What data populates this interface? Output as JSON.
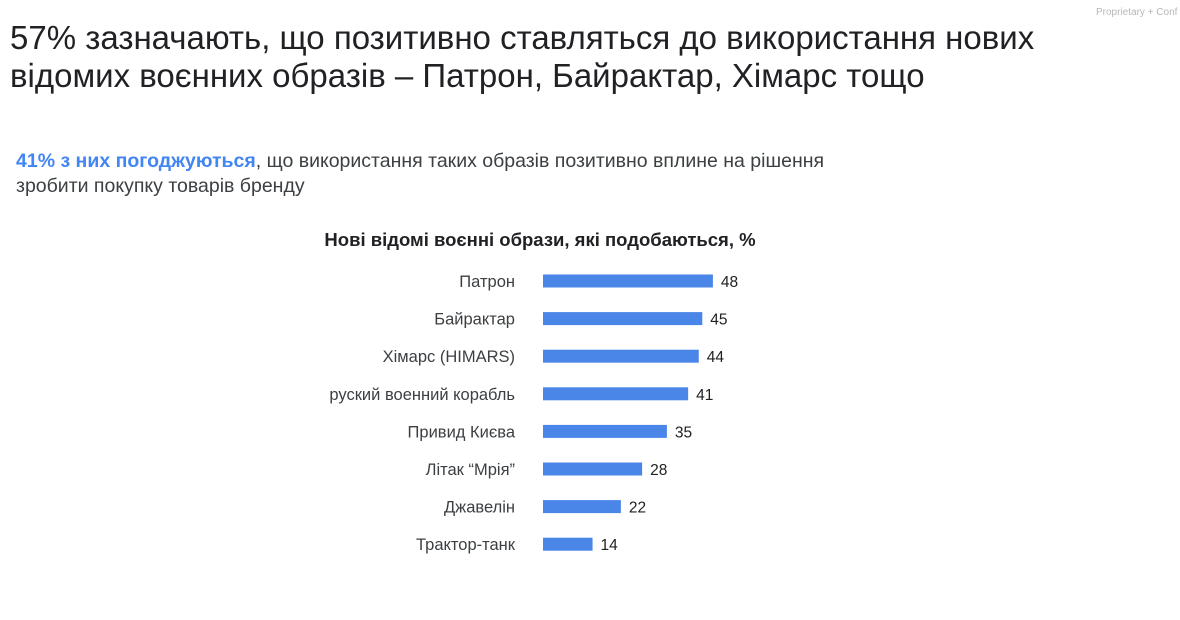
{
  "watermark": "Proprietary + Conf",
  "title": "57% зазначають, що позитивно ставляться до використання нових відомих воєнних образів – Патрон, Байрактар, Хімарс тощо",
  "subtitle": {
    "highlight": "41% з них погоджуються",
    "rest": ", що використання таких образів позитивно вплине на рішення зробити покупку товарів бренду"
  },
  "chart_data": {
    "type": "bar",
    "orientation": "horizontal",
    "title": "Нові відомі воєнні образи, які подобаються, %",
    "categories": [
      "Патрон",
      "Байрактар",
      "Хімарс (HIMARS)",
      "руский военний корабль",
      "Привид Києва",
      "Літак “Мрія”",
      "Джавелін",
      "Трактор-танк"
    ],
    "values": [
      48,
      45,
      44,
      41,
      35,
      28,
      22,
      14
    ],
    "data_labels": true,
    "xlabel": "",
    "ylabel": "",
    "grid": false,
    "colors": {
      "bar": "#4a86e8",
      "label": "#3c4043",
      "value": "#202124"
    }
  }
}
